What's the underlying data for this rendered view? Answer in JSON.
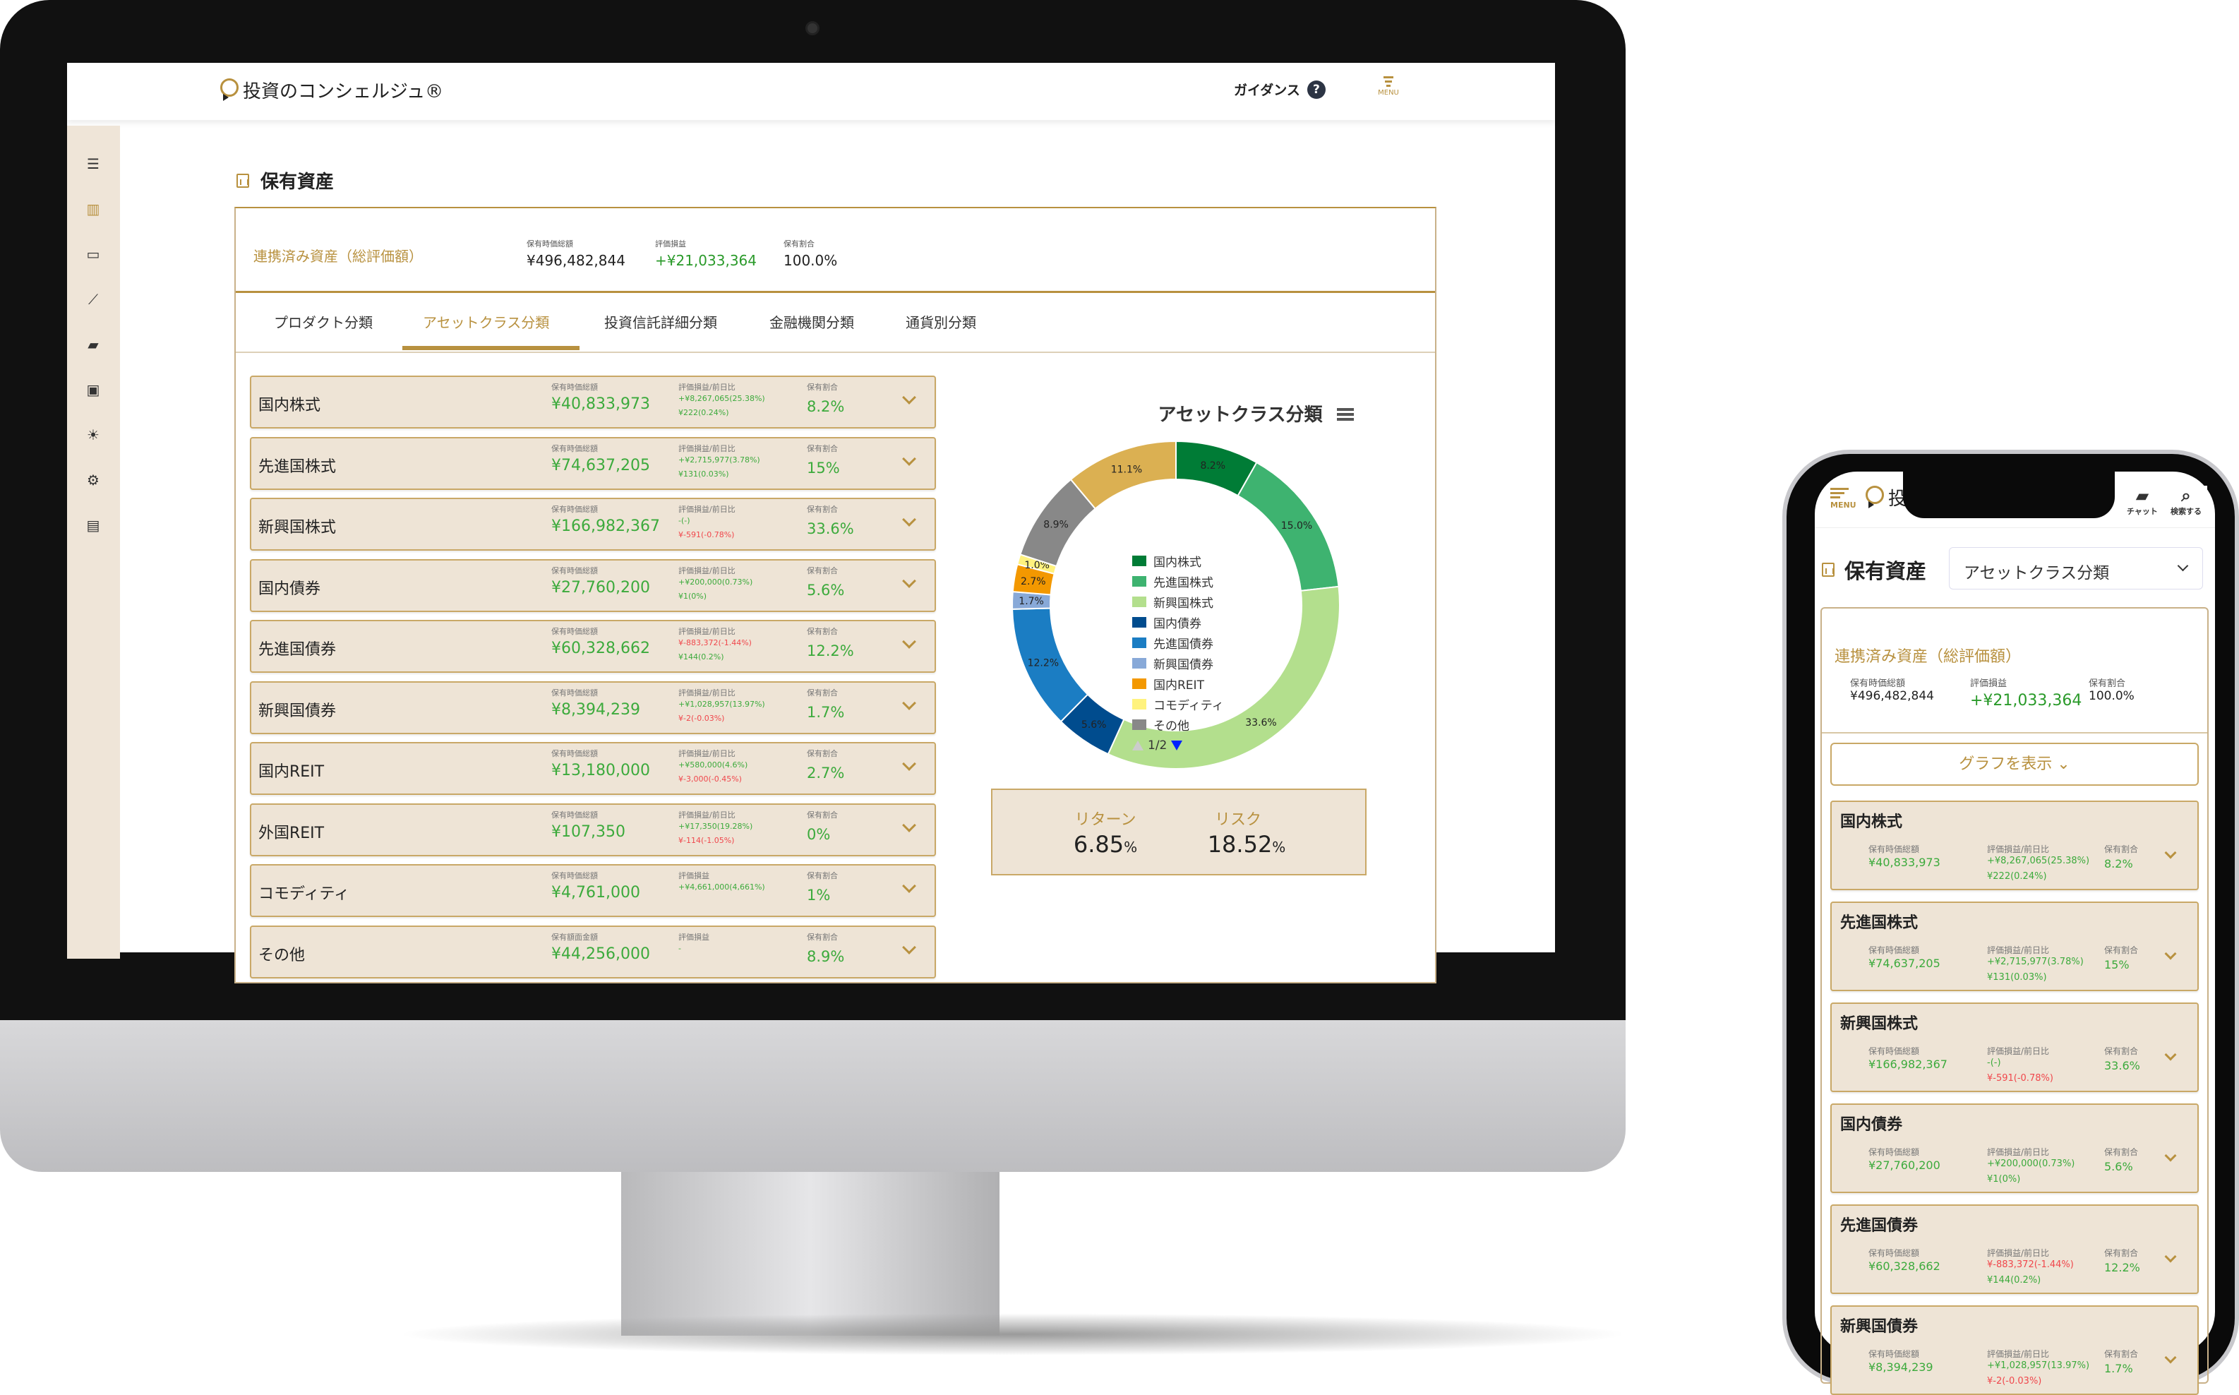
{
  "app": {
    "logo_text": "投資のコンシェルジュ®",
    "guidance_label": "ガイダンス",
    "guidance_icon": "question-circle-icon",
    "menu_label": "MENU"
  },
  "sidebar": {
    "items": [
      {
        "icon": "hamburger-icon",
        "glyph": "☰"
      },
      {
        "icon": "bar-chart-icon",
        "glyph": "▥"
      },
      {
        "icon": "credit-card-icon",
        "glyph": "▭"
      },
      {
        "icon": "line-chart-icon",
        "glyph": "⟋"
      },
      {
        "icon": "chat-icon",
        "glyph": "▰"
      },
      {
        "icon": "contact-icon",
        "glyph": "▣"
      },
      {
        "icon": "lightbulb-icon",
        "glyph": "☀"
      },
      {
        "icon": "gear-icon",
        "glyph": "⚙"
      },
      {
        "icon": "document-icon",
        "glyph": "▤"
      }
    ]
  },
  "page": {
    "title": "保有資産"
  },
  "summary": {
    "title": "連携済み資産（総評価額）",
    "labels": [
      "保有時価総額",
      "評価損益",
      "保有割合"
    ],
    "total_value": "¥496,482,844",
    "profit_loss": "+¥21,033,364",
    "share": "100.0%"
  },
  "tabs": [
    {
      "label": "プロダクト分類",
      "active": false
    },
    {
      "label": "アセットクラス分類",
      "active": true
    },
    {
      "label": "投資信託詳細分類",
      "active": false
    },
    {
      "label": "金融機関分類",
      "active": false
    },
    {
      "label": "通貨別分類",
      "active": false
    }
  ],
  "rows": [
    {
      "name": "国内株式",
      "l1": "保有時価総額",
      "value": "¥40,833,973",
      "l2": "評価損益/前日比",
      "pl": "+¥8,267,065(25.38%)",
      "pl_neg": false,
      "day": "¥222(0.24%)",
      "day_neg": false,
      "l3": "保有割合",
      "share": "8.2%"
    },
    {
      "name": "先進国株式",
      "l1": "保有時価総額",
      "value": "¥74,637,205",
      "l2": "評価損益/前日比",
      "pl": "+¥2,715,977(3.78%)",
      "pl_neg": false,
      "day": "¥131(0.03%)",
      "day_neg": false,
      "l3": "保有割合",
      "share": "15%"
    },
    {
      "name": "新興国株式",
      "l1": "保有時価総額",
      "value": "¥166,982,367",
      "l2": "評価損益/前日比",
      "pl": "-(-)",
      "pl_neg": false,
      "day": "¥-591(-0.78%)",
      "day_neg": true,
      "l3": "保有割合",
      "share": "33.6%"
    },
    {
      "name": "国内債券",
      "l1": "保有時価総額",
      "value": "¥27,760,200",
      "l2": "評価損益/前日比",
      "pl": "+¥200,000(0.73%)",
      "pl_neg": false,
      "day": "¥1(0%)",
      "day_neg": false,
      "l3": "保有割合",
      "share": "5.6%"
    },
    {
      "name": "先進国債券",
      "l1": "保有時価総額",
      "value": "¥60,328,662",
      "l2": "評価損益/前日比",
      "pl": "¥-883,372(-1.44%)",
      "pl_neg": true,
      "day": "¥144(0.2%)",
      "day_neg": false,
      "l3": "保有割合",
      "share": "12.2%"
    },
    {
      "name": "新興国債券",
      "l1": "保有時価総額",
      "value": "¥8,394,239",
      "l2": "評価損益/前日比",
      "pl": "+¥1,028,957(13.97%)",
      "pl_neg": false,
      "day": "¥-2(-0.03%)",
      "day_neg": true,
      "l3": "保有割合",
      "share": "1.7%"
    },
    {
      "name": "国内REIT",
      "l1": "保有時価総額",
      "value": "¥13,180,000",
      "l2": "評価損益/前日比",
      "pl": "+¥580,000(4.6%)",
      "pl_neg": false,
      "day": "¥-3,000(-0.45%)",
      "day_neg": true,
      "l3": "保有割合",
      "share": "2.7%"
    },
    {
      "name": "外国REIT",
      "l1": "保有時価総額",
      "value": "¥107,350",
      "l2": "評価損益/前日比",
      "pl": "+¥17,350(19.28%)",
      "pl_neg": false,
      "day": "¥-114(-1.05%)",
      "day_neg": true,
      "l3": "保有割合",
      "share": "0%"
    },
    {
      "name": "コモディティ",
      "l1": "保有時価総額",
      "value": "¥4,761,000",
      "l2": "評価損益",
      "pl": "+¥4,661,000(4,661%)",
      "pl_neg": false,
      "day": "",
      "day_neg": false,
      "l3": "保有割合",
      "share": "1%"
    },
    {
      "name": "その他",
      "l1": "保有額面金額",
      "value": "¥44,256,000",
      "l2": "評価損益",
      "pl": "-",
      "pl_neg": false,
      "day": "",
      "day_neg": false,
      "l3": "保有割合",
      "share": "8.9%"
    }
  ],
  "chart_data": {
    "type": "pie",
    "variant": "donut",
    "title": "アセットクラス分類",
    "legend_position": "center",
    "legend_page": "1/2",
    "series": [
      {
        "name": "国内株式",
        "value": 8.2,
        "label": "8.2%",
        "color": "#007c36"
      },
      {
        "name": "先進国株式",
        "value": 15.0,
        "label": "15.0%",
        "color": "#3eb370"
      },
      {
        "name": "新興国株式",
        "value": 33.6,
        "label": "33.6%",
        "color": "#b3df8d"
      },
      {
        "name": "国内債券",
        "value": 5.6,
        "label": "5.6%",
        "color": "#004c8e"
      },
      {
        "name": "先進国債券",
        "value": 12.2,
        "label": "12.2%",
        "color": "#1b7dc3"
      },
      {
        "name": "新興国債券",
        "value": 1.7,
        "label": "1.7%",
        "color": "#88a9d8"
      },
      {
        "name": "国内REIT",
        "value": 2.7,
        "label": "2.7%",
        "color": "#f39800"
      },
      {
        "name": "コモディティ",
        "value": 1.0,
        "label": "1.0%",
        "color": "#fff27e"
      },
      {
        "name": "その他",
        "value": 8.9,
        "label": "8.9%",
        "color": "#888888"
      },
      {
        "value": 11.1,
        "label": "11.1%",
        "color": "#dbb052"
      }
    ]
  },
  "return_risk": {
    "return_label": "リターン",
    "return_value": "6.85",
    "risk_label": "リスク",
    "risk_value": "18.52",
    "unit": "%"
  },
  "phone": {
    "menu_label": "MENU",
    "chat_label": "チャット",
    "search_label": "検索する",
    "select_value": "アセットクラス分類",
    "graph_button": "グラフを表示",
    "row_count": 6
  },
  "colors": {
    "accent": "#b8913f",
    "row_bg": "#eee4d6",
    "positive": "#3caa3c",
    "negative": "#f0474c",
    "sidebar_bg": "#efe5d8"
  }
}
